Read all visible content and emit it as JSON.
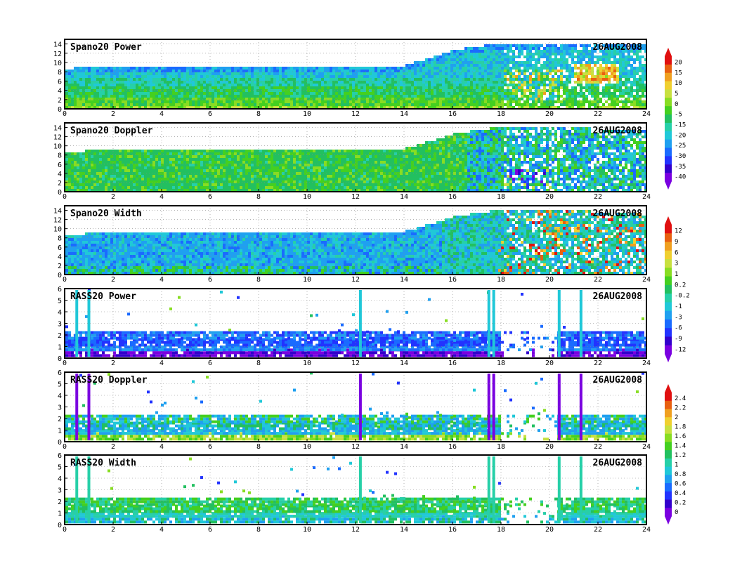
{
  "date_label": "26AUG2008",
  "colors": {
    "palette": [
      "#7a00e0",
      "#3300cc",
      "#2233ff",
      "#1a6bff",
      "#1fa0f0",
      "#20c8d8",
      "#26d0a8",
      "#22c060",
      "#44d020",
      "#88dd22",
      "#c8e040",
      "#f0d030",
      "#f0a020",
      "#e86010",
      "#e01010"
    ]
  },
  "chart_data": [
    {
      "type": "heatmap",
      "title": "Spano20  Power",
      "x_ticks": [
        "0",
        "2",
        "4",
        "6",
        "8",
        "10",
        "12",
        "14",
        "16",
        "18",
        "20",
        "22",
        "24"
      ],
      "y_ticks": [
        "0",
        "2",
        "4",
        "6",
        "8",
        "10",
        "12",
        "14"
      ],
      "xlim": [
        0,
        24
      ],
      "ylim": [
        0,
        15
      ],
      "grid": true,
      "colorbar_ticks": [
        "20",
        "15",
        "10",
        "5",
        "0",
        "-5",
        "-15",
        "-20",
        "-25",
        "-30",
        "-35",
        "-40"
      ],
      "data_top": [
        [
          0,
          9
        ],
        [
          2,
          9.5
        ],
        [
          4,
          9.5
        ],
        [
          6,
          9.5
        ],
        [
          8,
          9.5
        ],
        [
          10,
          9.5
        ],
        [
          12,
          9.3
        ],
        [
          13.7,
          9.3
        ],
        [
          15.5,
          12
        ],
        [
          16,
          13
        ],
        [
          18,
          14.5
        ],
        [
          20,
          14.5
        ],
        [
          22,
          14
        ],
        [
          24,
          14
        ]
      ],
      "profile": "power"
    },
    {
      "type": "heatmap",
      "title": "Spano20  Doppler",
      "x_ticks": [
        "0",
        "2",
        "4",
        "6",
        "8",
        "10",
        "12",
        "14",
        "16",
        "18",
        "20",
        "22",
        "24"
      ],
      "y_ticks": [
        "0",
        "2",
        "4",
        "6",
        "8",
        "10",
        "12",
        "14"
      ],
      "xlim": [
        0,
        24
      ],
      "ylim": [
        0,
        15
      ],
      "grid": true,
      "colorbar_ticks": [],
      "data_top": [
        [
          0,
          9
        ],
        [
          2,
          9.5
        ],
        [
          4,
          9.5
        ],
        [
          6,
          9.5
        ],
        [
          8,
          9.5
        ],
        [
          10,
          9.5
        ],
        [
          12,
          9.3
        ],
        [
          13.7,
          9.3
        ],
        [
          15.5,
          12
        ],
        [
          16,
          13
        ],
        [
          18,
          14.5
        ],
        [
          20,
          14.5
        ],
        [
          22,
          14
        ],
        [
          24,
          14
        ]
      ],
      "profile": "doppler"
    },
    {
      "type": "heatmap",
      "title": "Spano20  Width",
      "x_ticks": [
        "0",
        "2",
        "4",
        "6",
        "8",
        "10",
        "12",
        "14",
        "16",
        "18",
        "20",
        "22",
        "24"
      ],
      "y_ticks": [
        "0",
        "2",
        "4",
        "6",
        "8",
        "10",
        "12",
        "14"
      ],
      "xlim": [
        0,
        24
      ],
      "ylim": [
        0,
        15
      ],
      "grid": true,
      "colorbar_ticks": [
        "12",
        "9",
        "6",
        "3",
        "1",
        "0.2",
        "-0.2",
        "-1",
        "-3",
        "-6",
        "-9",
        "-12"
      ],
      "data_top": [
        [
          0,
          9
        ],
        [
          2,
          9.5
        ],
        [
          4,
          9.5
        ],
        [
          6,
          9.5
        ],
        [
          8,
          9.5
        ],
        [
          10,
          9.5
        ],
        [
          12,
          9.3
        ],
        [
          13.7,
          9.3
        ],
        [
          15.5,
          12
        ],
        [
          16,
          13
        ],
        [
          18,
          14.5
        ],
        [
          20,
          14.5
        ],
        [
          22,
          14
        ],
        [
          24,
          14
        ]
      ],
      "profile": "width"
    },
    {
      "type": "heatmap",
      "title": "RASS20  Power",
      "x_ticks": [
        "0",
        "2",
        "4",
        "6",
        "8",
        "10",
        "12",
        "14",
        "16",
        "18",
        "20",
        "22",
        "24"
      ],
      "y_ticks": [
        "0",
        "1",
        "2",
        "3",
        "4",
        "5",
        "6"
      ],
      "xlim": [
        0,
        24
      ],
      "ylim": [
        0,
        6
      ],
      "grid": true,
      "colorbar_ticks": [],
      "spikes": [
        0.5,
        1.0,
        12.2,
        17.5,
        17.7,
        20.4,
        21.3
      ],
      "profile": "rpower"
    },
    {
      "type": "heatmap",
      "title": "RASS20  Doppler",
      "x_ticks": [
        "0",
        "2",
        "4",
        "6",
        "8",
        "10",
        "12",
        "14",
        "16",
        "18",
        "20",
        "22",
        "24"
      ],
      "y_ticks": [
        "0",
        "1",
        "2",
        "3",
        "4",
        "5",
        "6"
      ],
      "xlim": [
        0,
        24
      ],
      "ylim": [
        0,
        6
      ],
      "grid": true,
      "colorbar_ticks": [
        "2.4",
        "2.2",
        "2",
        "1.8",
        "1.6",
        "1.4",
        "1.2",
        "1",
        "0.8",
        "0.6",
        "0.4",
        "0.2",
        "0"
      ],
      "spikes": [
        0.5,
        1.0,
        12.2,
        17.5,
        17.7,
        20.4,
        21.3
      ],
      "profile": "rdoppler"
    },
    {
      "type": "heatmap",
      "title": "RASS20  Width",
      "x_ticks": [
        "0",
        "2",
        "4",
        "6",
        "8",
        "10",
        "12",
        "14",
        "16",
        "18",
        "20",
        "22",
        "24"
      ],
      "y_ticks": [
        "0",
        "1",
        "2",
        "3",
        "4",
        "5",
        "6"
      ],
      "xlim": [
        0,
        24
      ],
      "ylim": [
        0,
        6
      ],
      "grid": true,
      "colorbar_ticks": [],
      "spikes": [
        0.5,
        1.0,
        12.2,
        17.5,
        17.7,
        20.4,
        21.3
      ],
      "profile": "rwidth"
    }
  ]
}
